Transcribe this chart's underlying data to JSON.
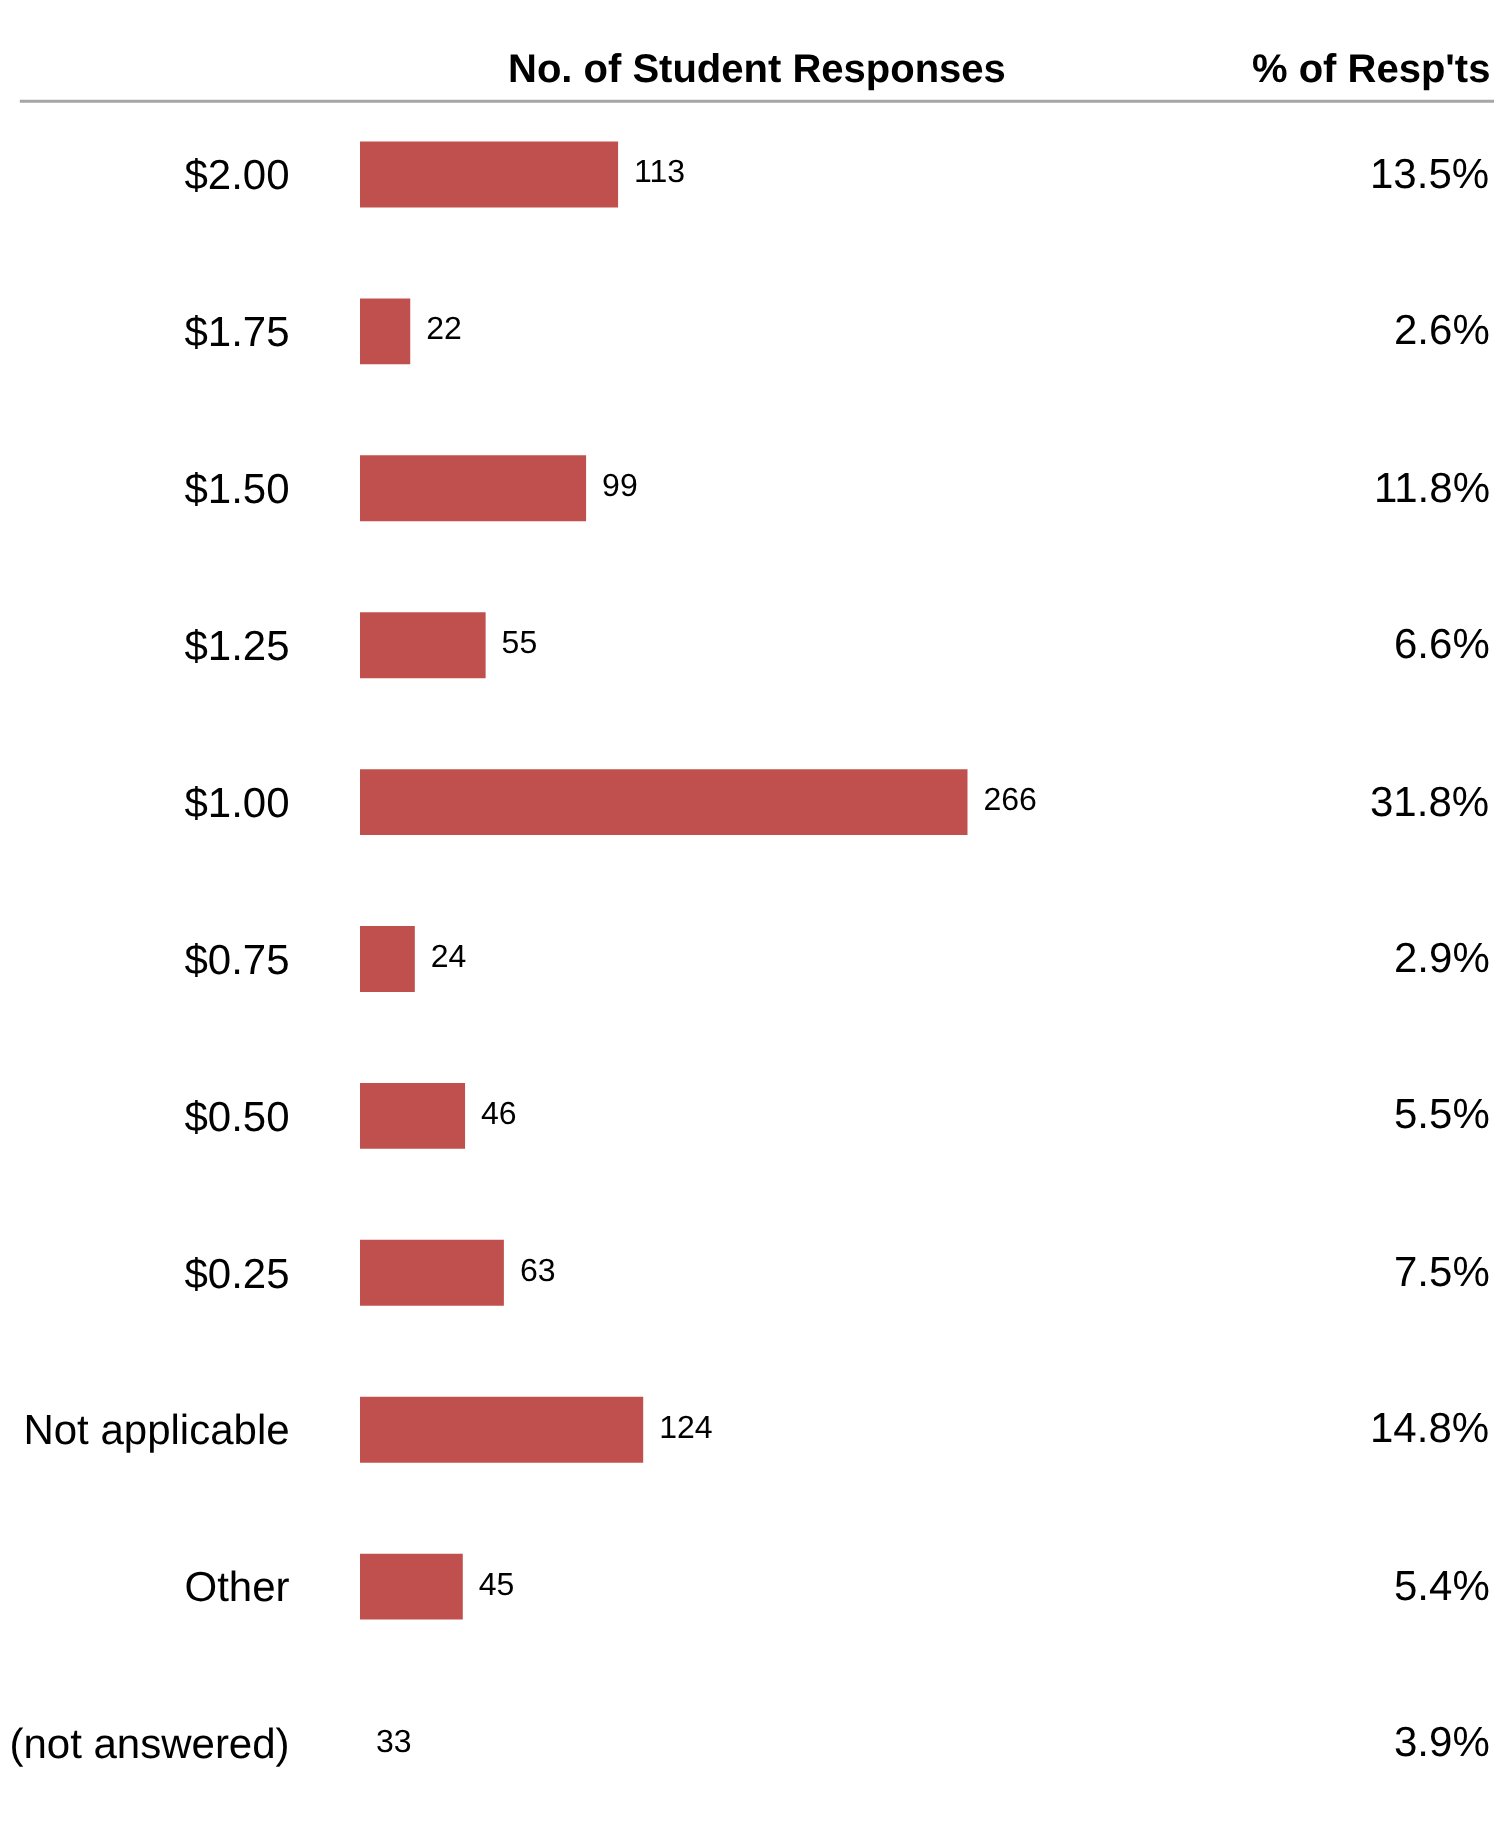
{
  "chart_data": {
    "type": "bar",
    "orientation": "horizontal",
    "title": "No. of Student Responses",
    "categories": [
      "$2.00",
      "$1.75",
      "$1.50",
      "$1.25",
      "$1.00",
      "$0.75",
      "$0.50",
      "$0.25",
      "Not applicable",
      "Other",
      "(not answered)"
    ],
    "values": [
      113,
      22,
      99,
      55,
      266,
      24,
      46,
      63,
      124,
      45,
      null
    ],
    "value_labels": [
      "113",
      "22",
      "99",
      "55",
      "266",
      "24",
      "46",
      "63",
      "124",
      "45",
      "33"
    ],
    "color": "#c0504d",
    "annotations": [
      "% of Resp'ts",
      "13.5%",
      "2.6%",
      "11.8%",
      "6.6%",
      "31.8%",
      "2.9%",
      "5.5%",
      "7.5%",
      "14.8%",
      "5.4%",
      "3.9%"
    ]
  }
}
